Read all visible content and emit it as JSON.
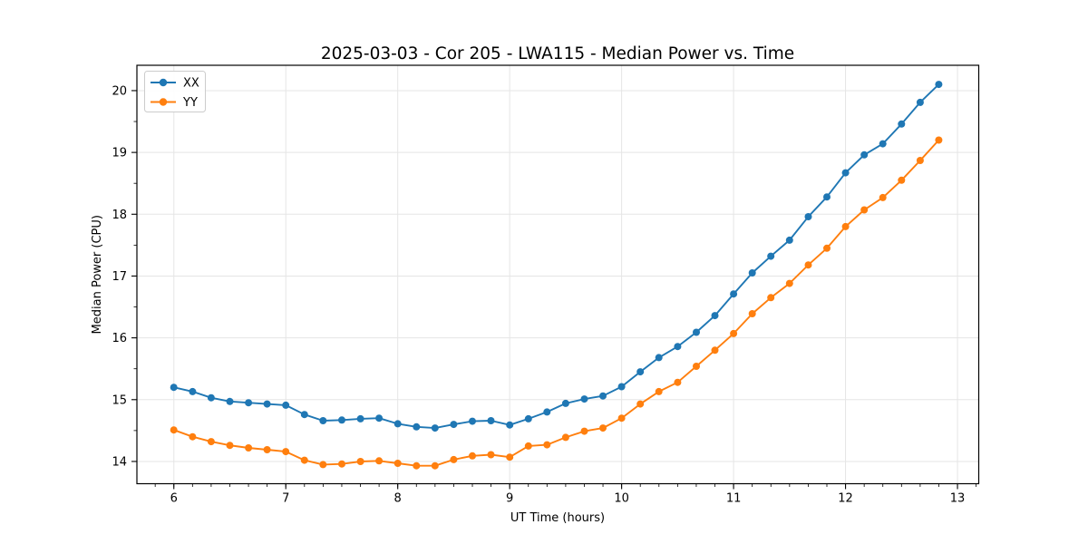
{
  "chart_data": {
    "type": "line",
    "title": "2025-03-03 - Cor 205 - LWA115 - Median Power vs. Time",
    "xlabel": "UT Time (hours)",
    "ylabel": "Median Power (CPU)",
    "xlim": [
      5.67,
      13.19
    ],
    "ylim": [
      13.64,
      20.41
    ],
    "xticks": [
      6,
      7,
      8,
      9,
      10,
      11,
      12,
      13
    ],
    "yticks": [
      14,
      15,
      16,
      17,
      18,
      19,
      20
    ],
    "xtick_labels": [
      "6",
      "7",
      "8",
      "9",
      "10",
      "11",
      "12",
      "13"
    ],
    "ytick_labels": [
      "14",
      "15",
      "16",
      "17",
      "18",
      "19",
      "20"
    ],
    "x_minor_step": 0.166667,
    "y_minor_step": 0.5,
    "grid": "major-both",
    "grid_color": "#e5e5e5",
    "legend_position": "upper-left",
    "x": [
      6.0,
      6.167,
      6.333,
      6.5,
      6.667,
      6.833,
      7.0,
      7.167,
      7.333,
      7.5,
      7.667,
      7.833,
      8.0,
      8.167,
      8.333,
      8.5,
      8.667,
      8.833,
      9.0,
      9.167,
      9.333,
      9.5,
      9.667,
      9.833,
      10.0,
      10.167,
      10.333,
      10.5,
      10.667,
      10.833,
      11.0,
      11.167,
      11.333,
      11.5,
      11.667,
      11.833,
      12.0,
      12.167,
      12.333,
      12.5,
      12.667,
      12.833
    ],
    "series": [
      {
        "name": "XX",
        "color": "#1f77b4",
        "values": [
          15.2,
          15.13,
          15.03,
          14.97,
          14.95,
          14.93,
          14.91,
          14.76,
          14.66,
          14.67,
          14.69,
          14.7,
          14.61,
          14.56,
          14.54,
          14.6,
          14.65,
          14.66,
          14.59,
          14.69,
          14.8,
          14.94,
          15.01,
          15.06,
          15.21,
          15.45,
          15.68,
          15.86,
          16.09,
          16.36,
          16.71,
          17.05,
          17.32,
          17.58,
          17.96,
          18.28,
          18.67,
          18.96,
          19.14,
          19.46,
          19.81,
          20.1
        ]
      },
      {
        "name": "YY",
        "color": "#ff7f0e",
        "values": [
          14.51,
          14.4,
          14.32,
          14.26,
          14.22,
          14.19,
          14.16,
          14.02,
          13.95,
          13.96,
          14.0,
          14.01,
          13.97,
          13.93,
          13.93,
          14.03,
          14.09,
          14.11,
          14.07,
          14.25,
          14.27,
          14.39,
          14.49,
          14.54,
          14.7,
          14.93,
          15.13,
          15.28,
          15.54,
          15.8,
          16.07,
          16.39,
          16.65,
          16.88,
          17.18,
          17.45,
          17.8,
          18.07,
          18.27,
          18.55,
          18.87,
          19.2
        ]
      }
    ]
  }
}
